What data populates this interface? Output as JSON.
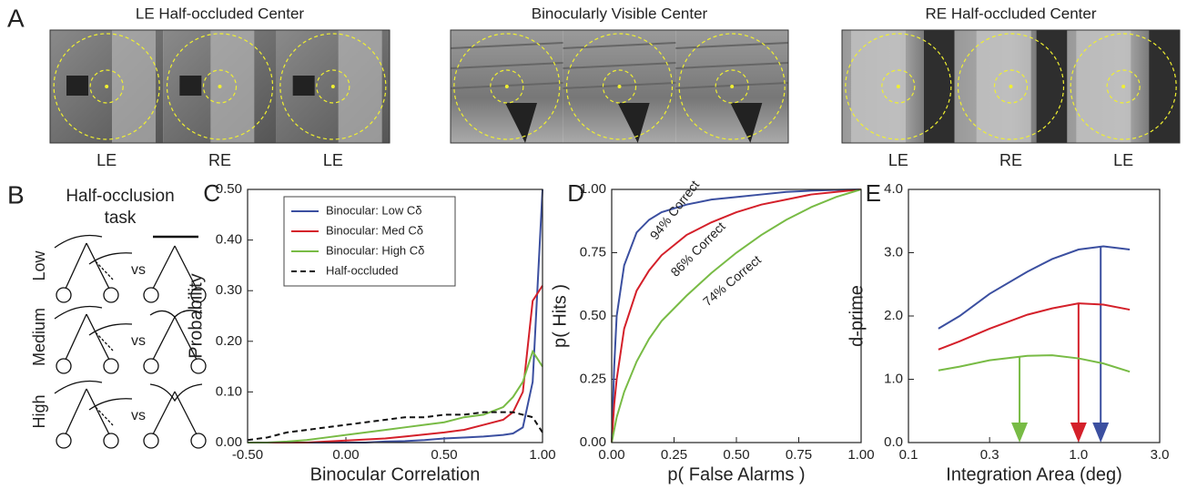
{
  "panel_a": {
    "label": "A",
    "groups": [
      {
        "title": "LE Half-occluded Center",
        "eyes": [
          "LE",
          "RE",
          "LE"
        ]
      },
      {
        "title": "Binocularly Visible Center"
      },
      {
        "title": "RE Half-occluded Center",
        "eyes": [
          "LE",
          "RE",
          "LE"
        ]
      }
    ]
  },
  "panel_b": {
    "label": "B",
    "title": "Half-occlusion",
    "subtitle": "task",
    "rows": [
      "Low",
      "Medium",
      "High"
    ],
    "vs": "vs"
  },
  "chart_data": [
    {
      "type": "line",
      "panel_label": "C",
      "xlabel": "Binocular Correlation",
      "ylabel": "Probability",
      "x": [
        -0.5,
        -0.4,
        -0.3,
        -0.2,
        -0.1,
        0,
        0.1,
        0.2,
        0.3,
        0.4,
        0.5,
        0.6,
        0.7,
        0.8,
        0.85,
        0.9,
        0.95,
        1.0
      ],
      "series": [
        {
          "name": "Binocular: Low Cδ",
          "color": "#3b4fa0",
          "values": [
            0,
            0,
            0,
            0,
            0,
            0,
            0,
            0.002,
            0.003,
            0.005,
            0.008,
            0.01,
            0.012,
            0.015,
            0.018,
            0.03,
            0.12,
            0.5
          ]
        },
        {
          "name": "Binocular: Med Cδ",
          "color": "#d4202a",
          "values": [
            0,
            0,
            0,
            0,
            0.002,
            0.004,
            0.006,
            0.008,
            0.012,
            0.016,
            0.02,
            0.025,
            0.035,
            0.045,
            0.06,
            0.1,
            0.28,
            0.31
          ]
        },
        {
          "name": "Binocular: High Cδ",
          "color": "#78bb45",
          "values": [
            0,
            0,
            0.002,
            0.005,
            0.01,
            0.015,
            0.02,
            0.025,
            0.03,
            0.035,
            0.04,
            0.05,
            0.055,
            0.07,
            0.09,
            0.12,
            0.18,
            0.15
          ]
        },
        {
          "name": "Half-occluded",
          "color": "#111111",
          "dash": true,
          "values": [
            0.005,
            0.01,
            0.02,
            0.025,
            0.03,
            0.035,
            0.04,
            0.045,
            0.05,
            0.05,
            0.055,
            0.055,
            0.06,
            0.06,
            0.06,
            0.055,
            0.05,
            0.02
          ]
        }
      ],
      "xlim": [
        -0.5,
        1.0
      ],
      "ylim": [
        0,
        0.5
      ],
      "xticks": [
        {
          "value": -0.5,
          "label": "-0.50"
        },
        {
          "value": 0,
          "label": "0.00"
        },
        {
          "value": 0.5,
          "label": "0.50"
        },
        {
          "value": 1.0,
          "label": "1.00"
        }
      ],
      "yticks": [
        {
          "value": 0,
          "label": "0.00"
        },
        {
          "value": 0.1,
          "label": "0.10"
        },
        {
          "value": 0.2,
          "label": "0.20"
        },
        {
          "value": 0.3,
          "label": "0.30"
        },
        {
          "value": 0.4,
          "label": "0.40"
        },
        {
          "value": 0.5,
          "label": "0.50"
        }
      ],
      "legend": "upper left"
    },
    {
      "type": "line",
      "panel_label": "D",
      "xlabel": "p( False Alarms )",
      "ylabel": "p( Hits )",
      "x": [
        0,
        0.01,
        0.02,
        0.05,
        0.1,
        0.15,
        0.2,
        0.3,
        0.4,
        0.5,
        0.6,
        0.7,
        0.8,
        0.9,
        1.0
      ],
      "series": [
        {
          "color": "#3b4fa0",
          "values": [
            0,
            0.3,
            0.5,
            0.7,
            0.83,
            0.88,
            0.91,
            0.94,
            0.96,
            0.97,
            0.98,
            0.99,
            0.995,
            0.998,
            1
          ]
        },
        {
          "color": "#d4202a",
          "values": [
            0,
            0.15,
            0.25,
            0.45,
            0.6,
            0.68,
            0.74,
            0.82,
            0.87,
            0.91,
            0.94,
            0.96,
            0.98,
            0.99,
            1
          ]
        },
        {
          "color": "#78bb45",
          "values": [
            0,
            0.05,
            0.1,
            0.2,
            0.32,
            0.41,
            0.48,
            0.58,
            0.67,
            0.75,
            0.82,
            0.88,
            0.93,
            0.97,
            1
          ]
        }
      ],
      "annotations": [
        "94% Correct",
        "86% Correct",
        "74% Correct"
      ],
      "xlim": [
        0,
        1
      ],
      "ylim": [
        0,
        1
      ],
      "xticks": [
        {
          "value": 0,
          "label": "0.00"
        },
        {
          "value": 0.25,
          "label": "0.25"
        },
        {
          "value": 0.5,
          "label": "0.50"
        },
        {
          "value": 0.75,
          "label": "0.75"
        },
        {
          "value": 1,
          "label": "1.00"
        }
      ],
      "yticks": [
        {
          "value": 0,
          "label": "0.00"
        },
        {
          "value": 0.25,
          "label": "0.25"
        },
        {
          "value": 0.5,
          "label": "0.50"
        },
        {
          "value": 0.75,
          "label": "0.75"
        },
        {
          "value": 1,
          "label": "1.00"
        }
      ]
    },
    {
      "type": "line",
      "panel_label": "E",
      "xlabel": "Integration Area (deg)",
      "ylabel": "d-prime",
      "x": [
        0.15,
        0.2,
        0.3,
        0.5,
        0.7,
        1.0,
        1.4,
        2.0
      ],
      "log_x": true,
      "series": [
        {
          "color": "#3b4fa0",
          "values": [
            1.8,
            2.0,
            2.35,
            2.7,
            2.9,
            3.05,
            3.1,
            3.05
          ],
          "optimum": 1.35
        },
        {
          "color": "#d4202a",
          "values": [
            1.47,
            1.6,
            1.8,
            2.02,
            2.12,
            2.2,
            2.18,
            2.1
          ],
          "optimum": 1.0
        },
        {
          "color": "#78bb45",
          "values": [
            1.14,
            1.2,
            1.3,
            1.37,
            1.38,
            1.33,
            1.25,
            1.12
          ],
          "optimum": 0.45
        }
      ],
      "xlim": [
        0.1,
        3.0
      ],
      "ylim": [
        0,
        4.0
      ],
      "xticks": [
        0.1,
        0.3,
        {
          "value": 1,
          "label": "1.0"
        },
        {
          "value": 3,
          "label": "3.0"
        }
      ],
      "yticks": [
        {
          "value": 0,
          "label": "0.0"
        },
        {
          "value": 1,
          "label": "1.0"
        },
        {
          "value": 2,
          "label": "2.0"
        },
        {
          "value": 3,
          "label": "3.0"
        },
        {
          "value": 4,
          "label": "4.0"
        }
      ]
    }
  ]
}
